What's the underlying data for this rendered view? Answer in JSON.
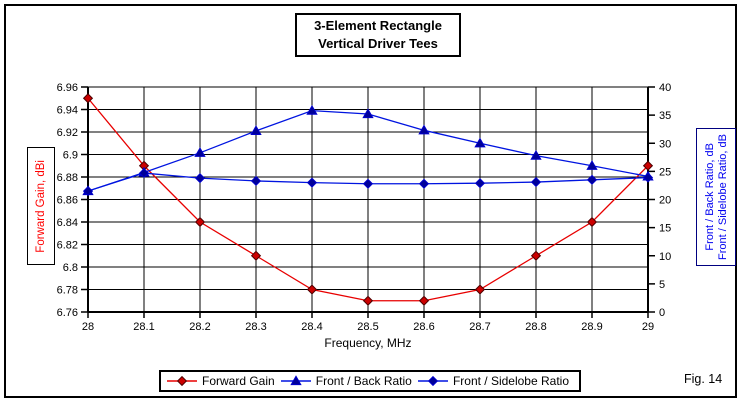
{
  "title": {
    "line1": "3-Element Rectangle",
    "line2": "Vertical Driver Tees"
  },
  "figure_label": "Fig. 14",
  "axes": {
    "left": {
      "title": "Forward Gain,  dBi",
      "tick_labels": [
        "6.96",
        "6.94",
        "6.92",
        "6.9",
        "6.88",
        "6.86",
        "6.84",
        "6.82",
        "6.8",
        "6.78",
        "6.76"
      ]
    },
    "right": {
      "title_line1": "Front / Back Ratio,  dB",
      "title_line2": "Front / Sidelobe Ratio,  dB",
      "tick_labels": [
        "40",
        "35",
        "30",
        "25",
        "20",
        "15",
        "10",
        "5",
        "0"
      ]
    },
    "x": {
      "title": "Frequency, MHz",
      "tick_labels": [
        "28",
        "28.1",
        "28.2",
        "28.3",
        "28.4",
        "28.5",
        "28.6",
        "28.7",
        "28.8",
        "28.9",
        "29"
      ]
    }
  },
  "chart_data": {
    "type": "line",
    "title": "3-Element Rectangle Vertical Driver Tees",
    "xlabel": "Frequency, MHz",
    "ylabel_left": "Forward Gain, dBi",
    "ylabel_right": "Front / Back Ratio, dB; Front / Sidelobe Ratio, dB",
    "x": [
      28.0,
      28.1,
      28.2,
      28.3,
      28.4,
      28.5,
      28.6,
      28.7,
      28.8,
      28.9,
      29.0
    ],
    "xlim": [
      28,
      29
    ],
    "left_ylim": [
      6.76,
      6.96
    ],
    "right_ylim": [
      0,
      40
    ],
    "grid": true,
    "legend_position": "bottom",
    "series": [
      {
        "name": "Forward Gain",
        "axis": "left",
        "marker": "diamond",
        "color": "#e80000",
        "marker_fill": "#cc0000",
        "marker_stroke": "#4d0000",
        "values": [
          6.95,
          6.89,
          6.84,
          6.81,
          6.78,
          6.77,
          6.77,
          6.78,
          6.81,
          6.84,
          6.89
        ]
      },
      {
        "name": "Front / Back Ratio",
        "axis": "right",
        "marker": "triangle",
        "color": "#0014e0",
        "marker_fill": "#000099",
        "marker_stroke": "#0000cc",
        "values": [
          21.5,
          24.8,
          28.3,
          32.2,
          35.8,
          35.2,
          32.3,
          30.0,
          27.8,
          26.0,
          24.1
        ]
      },
      {
        "name": "Front / Sidelobe Ratio",
        "axis": "right",
        "marker": "diamond",
        "color": "#0014e0",
        "marker_fill": "#000099",
        "marker_stroke": "#0000cc",
        "values": [
          21.5,
          24.7,
          23.8,
          23.3,
          23.0,
          22.8,
          22.8,
          22.9,
          23.1,
          23.5,
          23.9
        ]
      }
    ]
  }
}
